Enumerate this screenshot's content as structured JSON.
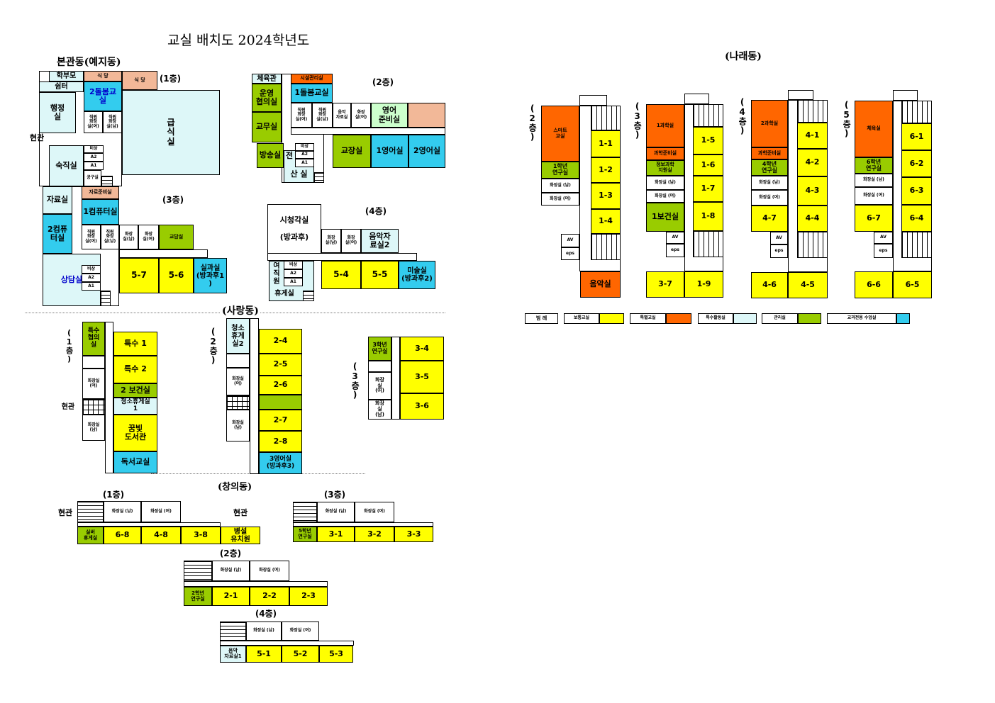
{
  "title": "교실 배치도 2024학년도",
  "main": {
    "name": "본관동(예지동)",
    "entrance": "현관",
    "floors": {
      "f1": "(1층)",
      "f2": "(2층)",
      "f3": "(3층)",
      "f4": "(4층)"
    },
    "rooms": {
      "f1_hakbumo": "학부모",
      "f1_shimteo": "쉼터",
      "f1_sikdang1": "식 당",
      "f1_sikdang2": "식 당",
      "f1_dolbom2": "2돌봄교\n실",
      "f1_staff_wc_w": "직원\n화장\n실(여)",
      "f1_staff_wc_m": "직원\n화장\n실(남)",
      "f1_haengjeong": "행정\n실",
      "f1_geupsik": "급식실",
      "f1_sukjik": "숙직실",
      "f1_bisang": "비상",
      "f1_a2": "A2",
      "f1_a1": "A1",
      "f1_gongu": "공구실",
      "f3_jaryo": "자료실",
      "f3_com2": "2컴퓨\n터실",
      "f3_sangdam": "상담실",
      "f3_jaryojunbi": "자료준비실",
      "f3_com1": "1컴퓨터실",
      "f3_staff_wc_w": "직원\n화장\n실(여)",
      "f3_staff_wc_m": "직원\n화장\n실(남)",
      "f3_wc_m": "화장\n실(남)",
      "f3_wc_w": "화장\n실(여)",
      "f3_gyodam": "교담실",
      "f3_5_7": "5-7",
      "f3_5_6": "5-6",
      "f3_silgwa": "실과실\n(방과후1\n)",
      "f3_bisang": "비상",
      "f3_a2": "A2",
      "f3_a1": "A1",
      "f2_cheyuk": "체육관",
      "f2_unyeong": "운영\n협의실",
      "f2_gyomu": "교무실",
      "f2_bangsong": "방송실",
      "f2_siseol": "시설관리실",
      "f2_dolbom1": "1돌봄교실",
      "f2_staff_wc_w": "직원\n화장\n실(여)",
      "f2_staff_wc_m": "직원\n화장\n실(남)",
      "f2_eumak_jaryo": "음악\n자료실",
      "f2_wc_w": "화장\n실(여)",
      "f2_eng_junbi": "영어\n준비실",
      "f2_gyojang": "교장실",
      "f2_eng1": "1영어실",
      "f2_eng2": "2영어실",
      "f2_jeon": "전",
      "f2_sansil": "산  실",
      "f2_bisang": "비상",
      "f2_a2": "A2",
      "f2_a1": "A1",
      "f4_sicheong": "시청각실\n\n(방과후)",
      "f4_wc_m": "화장\n실(남)",
      "f4_wc_w": "화장\n실(여)",
      "f4_eumak2": "음악자\n료실2",
      "f4_yeojikwon": "여\n직\n원",
      "f4_hyuge": "휴게실",
      "f4_bisang": "비상",
      "f4_a2": "A2",
      "f4_a1": "A1",
      "f4_5_4": "5-4",
      "f4_5_5": "5-5",
      "f4_misul": "미술실\n(방과후2)"
    }
  },
  "sarang": {
    "name": "(사랑동)",
    "entrance": "현관",
    "floors": {
      "f1": "(1층)",
      "f2": "(2층)",
      "f3": "(3층)"
    },
    "rooms": {
      "f1_teuksu_hyeop": "특수\n협의\n실",
      "f1_wc_w": "화장실\n(여)",
      "f1_wc_m": "화장실\n(남)",
      "f1_teuksu1": "특수 1",
      "f1_teuksu2": "특수 2",
      "f1_bogeon2": "2 보건실",
      "f1_cheongso1": "청소휴게실\n1",
      "f1_library": "꿈빛\n도서관",
      "f1_dokseo": "독서교실",
      "f2_cheongso2": "청소\n휴게\n실2",
      "f2_wc_w": "화장실\n(여)",
      "f2_wc_m": "화장실\n(남)",
      "f2_2_4": "2-4",
      "f2_2_5": "2-5",
      "f2_2_6": "2-6",
      "f2_2_7": "2-7",
      "f2_2_8": "2-8",
      "f2_eng3": "3영어실\n(방과후3)",
      "f3_lab3": "3학년\n연구실",
      "f3_wc_w": "화장\n실\n(여)",
      "f3_wc_m": "화장\n실\n(남)",
      "f3_3_4": "3-4",
      "f3_3_5": "3-5",
      "f3_3_6": "3-6"
    }
  },
  "changui": {
    "name": "(창의동)",
    "entrance": "현관",
    "floors": {
      "f1": "(1층)",
      "f2": "(2층)",
      "f3": "(3층)",
      "f4": "(4층)"
    },
    "rooms": {
      "f1_wc_m": "화장실 (남)",
      "f1_wc_w": "화장실 (여)",
      "f1_silver": "실버\n휴게실",
      "f1_6_8": "6-8",
      "f1_4_8": "4-8",
      "f1_3_8": "3-8",
      "f1_byeongseol": "병설\n유치원",
      "f2_wc_m": "화장실 (남)",
      "f2_wc_w": "화장실 (여)",
      "f2_lab2": "2학년\n연구실",
      "f2_2_1": "2-1",
      "f2_2_2": "2-2",
      "f2_2_3": "2-3",
      "f3_wc_m": "화장실 (남)",
      "f3_wc_w": "화장실 (여)",
      "f3_lab5": "5학년\n연구실",
      "f3_3_1": "3-1",
      "f3_3_2": "3-2",
      "f3_3_3": "3-3",
      "f4_wc_m": "화장실 (남)",
      "f4_wc_w": "화장실 (여)",
      "f4_eumak1": "음악\n자료실1",
      "f4_5_1": "5-1",
      "f4_5_2": "5-2",
      "f4_5_3": "5-3"
    }
  },
  "narae": {
    "name": "(나래동)",
    "floors": {
      "f2": "(2층)",
      "f3": "(3층)",
      "f4": "(4층)",
      "f5": "(5층)"
    },
    "rooms": {
      "f2_smart": "스마트\n교실",
      "f2_lab1": "1학년\n연구실",
      "f2_wc_m": "화장실 (남)",
      "f2_wc_w": "화장실 (여)",
      "f2_av": "AV",
      "f2_eps": "eps",
      "f2_1_1": "1-1",
      "f2_1_2": "1-2",
      "f2_1_3": "1-3",
      "f2_1_4": "1-4",
      "f2_eumak": "음악실",
      "f3_gwahak1": "1과학실",
      "f3_junbi": "과학준비실",
      "f3_jeongbo": "정보과학\n지원실",
      "f3_wc_m": "화장실 (남)",
      "f3_wc_w": "화장실 (여)",
      "f3_bogeon1": "1보건실",
      "f3_av": "AV",
      "f3_eps": "eps",
      "f3_1_5": "1-5",
      "f3_1_6": "1-6",
      "f3_1_7": "1-7",
      "f3_1_8": "1-8",
      "f3_3_7": "3-7",
      "f3_1_9": "1-9",
      "f4_gwahak2": "2과학실",
      "f4_junbi": "과학준비실",
      "f4_lab4": "4학년\n연구실",
      "f4_wc_m": "화장실 (남)",
      "f4_wc_w": "화장실 (여)",
      "f4_4_7": "4-7",
      "f4_av": "AV",
      "f4_eps": "eps",
      "f4_4_1": "4-1",
      "f4_4_2": "4-2",
      "f4_4_3": "4-3",
      "f4_4_4": "4-4",
      "f4_4_6": "4-6",
      "f4_4_5": "4-5",
      "f5_cheyuk": "체육실",
      "f5_lab6": "6학년\n연구실",
      "f5_wc_m": "화장실 (남)",
      "f5_wc_w": "화장실 (여)",
      "f5_6_7": "6-7",
      "f5_av": "AV",
      "f5_eps": "eps",
      "f5_6_1": "6-1",
      "f5_6_2": "6-2",
      "f5_6_3": "6-3",
      "f5_6_4": "6-4",
      "f5_6_6": "6-6",
      "f5_6_5": "6-5"
    }
  },
  "legend": {
    "title": "범 례",
    "items": [
      {
        "label": "보통교실",
        "color": "#ffff00"
      },
      {
        "label": "특별교실",
        "color": "#ff6600"
      },
      {
        "label": "특수활동실",
        "color": "#ddf7f8"
      },
      {
        "label": "관리실",
        "color": "#99cc00"
      },
      {
        "label": "교과전용 수업실",
        "color": "#33ccee"
      }
    ]
  }
}
